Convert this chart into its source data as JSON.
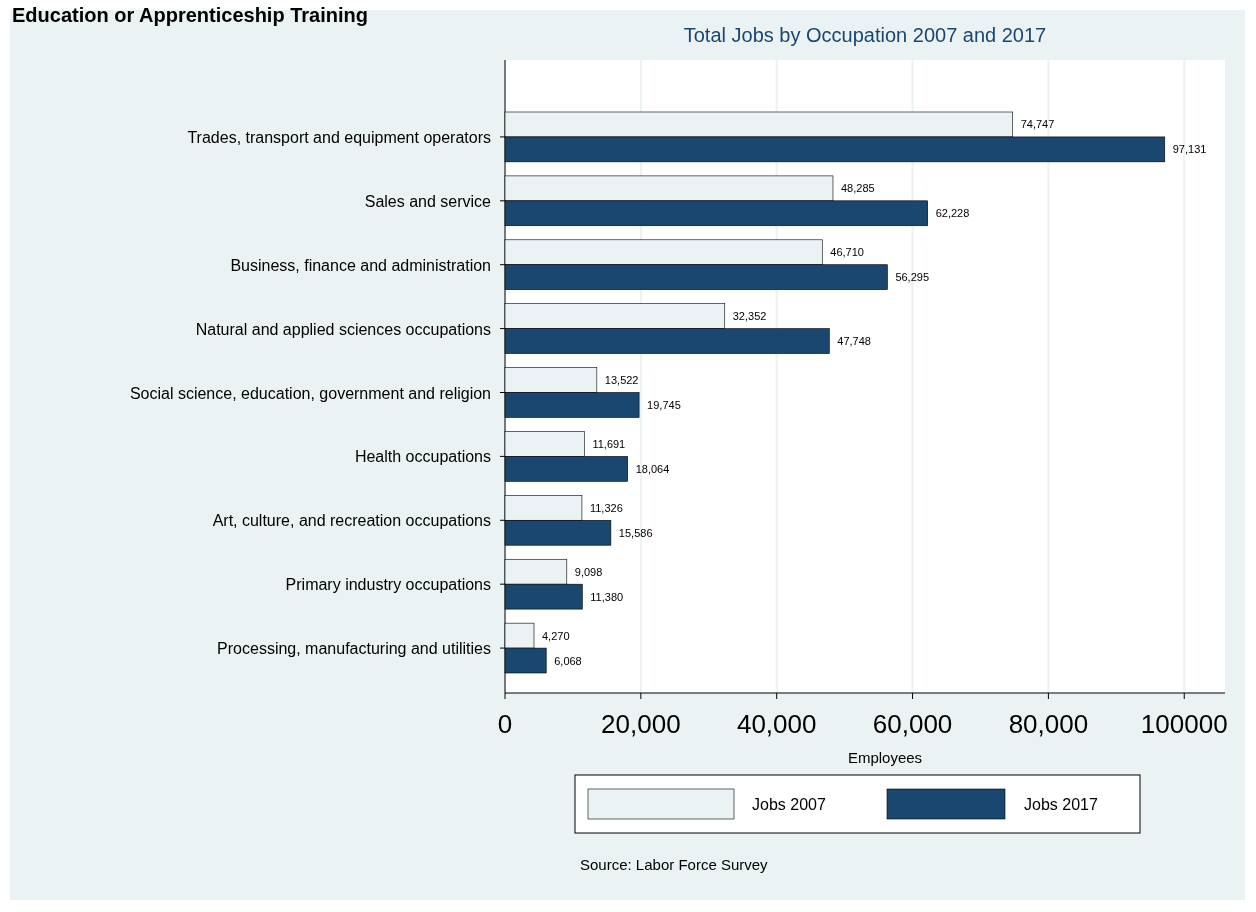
{
  "chart_data": {
    "type": "bar",
    "orientation": "horizontal",
    "title": "Education or Apprenticeship Training",
    "subtitle": "Total Jobs by Occupation 2007 and 2017",
    "xlabel": "Employees",
    "categories": [
      "Trades, transport and equipment operators",
      "Sales and service",
      "Business, finance and administration",
      "Natural and applied sciences occupations",
      "Social science, education, government and religion",
      "Health occupations",
      "Art, culture, and recreation occupations",
      "Primary industry occupations",
      "Processing, manufacturing and utilities"
    ],
    "series": [
      {
        "name": "Jobs 2007",
        "color": "#eaf2f3",
        "values": [
          74747,
          48285,
          46710,
          32352,
          13522,
          11691,
          11326,
          9098,
          4270
        ],
        "value_labels": [
          "74,747",
          "48,285",
          "46,710",
          "32,352",
          "13,522",
          "11,691",
          "11,326",
          "9,098",
          "4,270"
        ]
      },
      {
        "name": "Jobs 2017",
        "color": "#1a476f",
        "values": [
          97131,
          62228,
          56295,
          47748,
          19745,
          18064,
          15586,
          11380,
          6068
        ],
        "value_labels": [
          "97,131",
          "62,228",
          "56,295",
          "47,748",
          "19,745",
          "18,064",
          "15,586",
          "11,380",
          "6,068"
        ]
      }
    ],
    "xlim": [
      0,
      106000
    ],
    "xticks": [
      0,
      {
        "value": 20000,
        "label": "20,000"
      },
      {
        "value": 40000,
        "label": "40,000"
      },
      {
        "value": 60000,
        "label": "60,000"
      },
      {
        "value": 80000,
        "label": "80,000"
      },
      {
        "value": 100000,
        "label": "100000"
      }
    ],
    "grid": "x",
    "legend": "bottom",
    "annotations": [
      "Source: Labor Force Survey"
    ]
  }
}
